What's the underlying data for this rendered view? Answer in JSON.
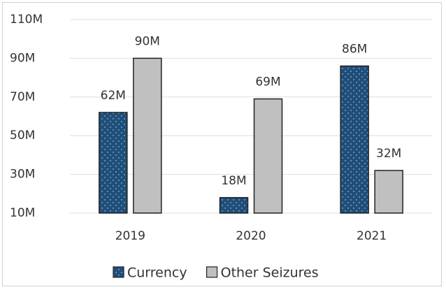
{
  "chart_data": {
    "type": "bar",
    "categories": [
      "2019",
      "2020",
      "2021"
    ],
    "series": [
      {
        "name": "Currency",
        "color": "#1f4e79",
        "values": [
          62,
          18,
          86
        ],
        "value_labels": [
          "62M",
          "18M",
          "86M"
        ]
      },
      {
        "name": "Other Seizures",
        "color": "#c0c0c0",
        "values": [
          90,
          69,
          32
        ],
        "value_labels": [
          "90M",
          "69M",
          "32M"
        ]
      }
    ],
    "ylim": [
      10,
      110
    ],
    "yticks": [
      {
        "value": 10,
        "label": "10M"
      },
      {
        "value": 30,
        "label": "30M"
      },
      {
        "value": 50,
        "label": "50M"
      },
      {
        "value": 70,
        "label": "70M"
      },
      {
        "value": 90,
        "label": "90M"
      },
      {
        "value": 110,
        "label": "110M"
      }
    ],
    "grid": true,
    "legend": "bottom"
  }
}
